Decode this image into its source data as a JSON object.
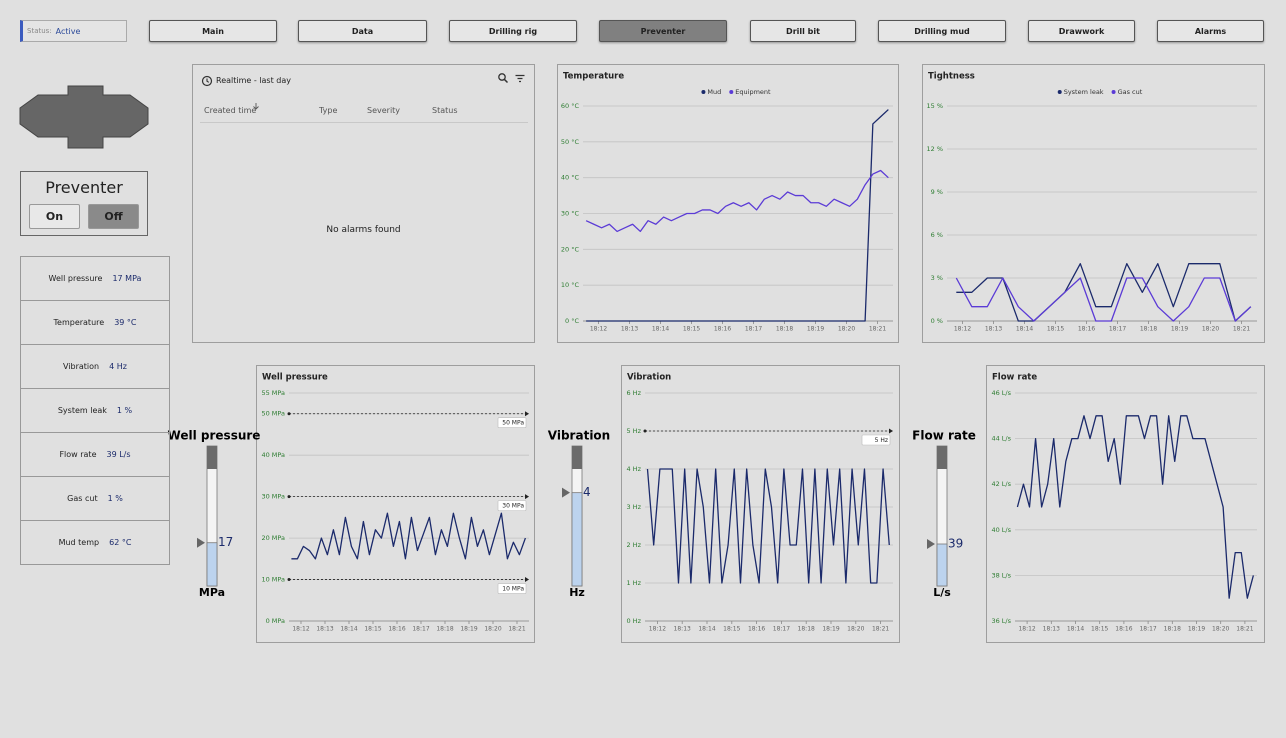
{
  "status": {
    "label": "Status:",
    "value": "Active"
  },
  "nav": [
    "Main",
    "Data",
    "Drilling rig",
    "Preventer",
    "Drill bit",
    "Drilling mud",
    "Drawwork",
    "Alarms"
  ],
  "preventer": {
    "title": "Preventer",
    "on": "On",
    "off": "Off"
  },
  "readings": [
    {
      "label": "Well pressure",
      "value": "17 MPa"
    },
    {
      "label": "Temperature",
      "value": "39 °C"
    },
    {
      "label": "Vibration",
      "value": "4 Hz"
    },
    {
      "label": "System leak",
      "value": "1 %"
    },
    {
      "label": "Flow rate",
      "value": "39 L/s"
    },
    {
      "label": "Gas cut",
      "value": "1 %"
    },
    {
      "label": "Mud temp",
      "value": "62 °C"
    }
  ],
  "alarms": {
    "title": "Realtime - last day",
    "columns": [
      "Created time",
      "Type",
      "Severity",
      "Status"
    ],
    "empty": "No alarms found"
  },
  "gauges": [
    {
      "title": "Well pressure",
      "value": 17,
      "unit": "MPa"
    },
    {
      "title": "Vibration",
      "value": 4,
      "unit": "Hz"
    },
    {
      "title": "Flow rate",
      "value": 39,
      "unit": "L/s"
    }
  ],
  "chart_data": [
    {
      "type": "line",
      "title": "Temperature",
      "legend": "top",
      "grid": true,
      "xlim": [
        1091.5,
        1101.5
      ],
      "xticks": [
        {
          "value": 1092,
          "label": "18:12"
        },
        {
          "value": 1093,
          "label": "18:13"
        },
        {
          "value": 1094,
          "label": "18:14"
        },
        {
          "value": 1095,
          "label": "18:15"
        },
        {
          "value": 1096,
          "label": "18:16"
        },
        {
          "value": 1097,
          "label": "18:17"
        },
        {
          "value": 1098,
          "label": "18:18"
        },
        {
          "value": 1099,
          "label": "18:19"
        },
        {
          "value": 1100,
          "label": "18:20"
        },
        {
          "value": 1101,
          "label": "18:21"
        }
      ],
      "ylim": [
        0,
        60
      ],
      "yticks": [
        {
          "value": 0,
          "label": "0 °C"
        },
        {
          "value": 10,
          "label": "10 °C"
        },
        {
          "value": 20,
          "label": "20 °C"
        },
        {
          "value": 30,
          "label": "30 °C"
        },
        {
          "value": 40,
          "label": "40 °C"
        },
        {
          "value": 50,
          "label": "50 °C"
        },
        {
          "value": 60,
          "label": "60 °C"
        }
      ],
      "x": [
        1091.6,
        1091.85,
        1092.1,
        1092.35,
        1092.6,
        1092.85,
        1093.1,
        1093.35,
        1093.6,
        1093.85,
        1094.1,
        1094.35,
        1094.6,
        1094.85,
        1095.1,
        1095.35,
        1095.6,
        1095.85,
        1096.1,
        1096.35,
        1096.6,
        1096.85,
        1097.1,
        1097.35,
        1097.6,
        1097.85,
        1098.1,
        1098.35,
        1098.6,
        1098.85,
        1099.1,
        1099.35,
        1099.6,
        1099.85,
        1100.1,
        1100.35,
        1100.6,
        1100.85,
        1101.1,
        1101.35
      ],
      "series": [
        {
          "name": "Mud",
          "color": "#1b2a6b",
          "values": [
            0,
            0,
            0,
            0,
            0,
            0,
            0,
            0,
            0,
            0,
            0,
            0,
            0,
            0,
            0,
            0,
            0,
            0,
            0,
            0,
            0,
            0,
            0,
            0,
            0,
            0,
            0,
            0,
            0,
            0,
            0,
            0,
            0,
            0,
            0,
            0,
            0,
            55,
            57,
            59
          ]
        },
        {
          "name": "Equipment",
          "color": "#5b3bd6",
          "values": [
            28,
            27,
            26,
            27,
            25,
            26,
            27,
            25,
            28,
            27,
            29,
            28,
            29,
            30,
            30,
            31,
            31,
            30,
            32,
            33,
            32,
            33,
            31,
            34,
            35,
            34,
            36,
            35,
            35,
            33,
            33,
            32,
            34,
            33,
            32,
            34,
            38,
            41,
            42,
            40
          ]
        }
      ]
    },
    {
      "type": "line",
      "title": "Tightness",
      "legend": "top",
      "grid": true,
      "xlim": [
        1091.5,
        1101.5
      ],
      "xticks": [
        {
          "value": 1092,
          "label": "18:12"
        },
        {
          "value": 1093,
          "label": "18:13"
        },
        {
          "value": 1094,
          "label": "18:14"
        },
        {
          "value": 1095,
          "label": "18:15"
        },
        {
          "value": 1096,
          "label": "18:16"
        },
        {
          "value": 1097,
          "label": "18:17"
        },
        {
          "value": 1098,
          "label": "18:18"
        },
        {
          "value": 1099,
          "label": "18:19"
        },
        {
          "value": 1100,
          "label": "18:20"
        },
        {
          "value": 1101,
          "label": "18:21"
        }
      ],
      "ylim": [
        0,
        15
      ],
      "yticks": [
        {
          "value": 0,
          "label": "0 %"
        },
        {
          "value": 3,
          "label": "3 %"
        },
        {
          "value": 6,
          "label": "6 %"
        },
        {
          "value": 9,
          "label": "9 %"
        },
        {
          "value": 12,
          "label": "12 %"
        },
        {
          "value": 15,
          "label": "15 %"
        }
      ],
      "x": [
        1091.8,
        1092.3,
        1092.8,
        1093.3,
        1093.8,
        1094.3,
        1094.8,
        1095.3,
        1095.8,
        1096.3,
        1096.8,
        1097.3,
        1097.8,
        1098.3,
        1098.8,
        1099.3,
        1099.8,
        1100.3,
        1100.8,
        1101.3
      ],
      "series": [
        {
          "name": "System leak",
          "color": "#1b2a6b",
          "values": [
            2,
            2,
            3,
            3,
            0,
            0,
            1,
            2,
            4,
            1,
            1,
            4,
            2,
            4,
            1,
            4,
            4,
            4,
            0,
            1
          ]
        },
        {
          "name": "Gas cut",
          "color": "#5b3bd6",
          "values": [
            3,
            1,
            1,
            3,
            1,
            0,
            1,
            2,
            3,
            0,
            0,
            3,
            3,
            1,
            0,
            1,
            3,
            3,
            0,
            1
          ]
        }
      ]
    },
    {
      "type": "line",
      "title": "Well pressure",
      "grid": true,
      "xlim": [
        1091.5,
        1101.5
      ],
      "xticks": [
        {
          "value": 1092,
          "label": "18:12"
        },
        {
          "value": 1093,
          "label": "18:13"
        },
        {
          "value": 1094,
          "label": "18:14"
        },
        {
          "value": 1095,
          "label": "18:15"
        },
        {
          "value": 1096,
          "label": "18:16"
        },
        {
          "value": 1097,
          "label": "18:17"
        },
        {
          "value": 1098,
          "label": "18:18"
        },
        {
          "value": 1099,
          "label": "18:19"
        },
        {
          "value": 1100,
          "label": "18:20"
        },
        {
          "value": 1101,
          "label": "18:21"
        }
      ],
      "ylim": [
        0,
        55
      ],
      "yticks": [
        {
          "value": 0,
          "label": "0 MPa"
        },
        {
          "value": 10,
          "label": "10 MPa"
        },
        {
          "value": 20,
          "label": "20 MPa"
        },
        {
          "value": 30,
          "label": "30 MPa"
        },
        {
          "value": 40,
          "label": "40 MPa"
        },
        {
          "value": 50,
          "label": "50 MPa"
        },
        {
          "value": 55,
          "label": "55 MPa"
        }
      ],
      "thresholds": [
        {
          "value": 50,
          "label": "50 MPa"
        },
        {
          "value": 30,
          "label": "30 MPa"
        },
        {
          "value": 10,
          "label": "10 MPa"
        }
      ],
      "x": [
        1091.6,
        1091.85,
        1092.1,
        1092.35,
        1092.6,
        1092.85,
        1093.1,
        1093.35,
        1093.6,
        1093.85,
        1094.1,
        1094.35,
        1094.6,
        1094.85,
        1095.1,
        1095.35,
        1095.6,
        1095.85,
        1096.1,
        1096.35,
        1096.6,
        1096.85,
        1097.1,
        1097.35,
        1097.6,
        1097.85,
        1098.1,
        1098.35,
        1098.6,
        1098.85,
        1099.1,
        1099.35,
        1099.6,
        1099.85,
        1100.1,
        1100.35,
        1100.6,
        1100.85,
        1101.1,
        1101.35
      ],
      "series": [
        {
          "name": "Well pressure",
          "color": "#1b2a6b",
          "values": [
            15,
            15,
            18,
            17,
            15,
            20,
            16,
            22,
            16,
            25,
            18,
            15,
            24,
            16,
            22,
            20,
            26,
            18,
            24,
            15,
            25,
            17,
            21,
            25,
            16,
            22,
            18,
            26,
            20,
            15,
            25,
            18,
            22,
            16,
            21,
            26,
            15,
            19,
            16,
            20
          ]
        }
      ]
    },
    {
      "type": "line",
      "title": "Vibration",
      "grid": true,
      "xlim": [
        1091.5,
        1101.5
      ],
      "xticks": [
        {
          "value": 1092,
          "label": "18:12"
        },
        {
          "value": 1093,
          "label": "18:13"
        },
        {
          "value": 1094,
          "label": "18:14"
        },
        {
          "value": 1095,
          "label": "18:15"
        },
        {
          "value": 1096,
          "label": "18:16"
        },
        {
          "value": 1097,
          "label": "18:17"
        },
        {
          "value": 1098,
          "label": "18:18"
        },
        {
          "value": 1099,
          "label": "18:19"
        },
        {
          "value": 1100,
          "label": "18:20"
        },
        {
          "value": 1101,
          "label": "18:21"
        }
      ],
      "ylim": [
        0,
        6
      ],
      "yticks": [
        {
          "value": 0,
          "label": "0 Hz"
        },
        {
          "value": 1,
          "label": "1 Hz"
        },
        {
          "value": 2,
          "label": "2 Hz"
        },
        {
          "value": 3,
          "label": "3 Hz"
        },
        {
          "value": 4,
          "label": "4 Hz"
        },
        {
          "value": 5,
          "label": "5 Hz"
        },
        {
          "value": 6,
          "label": "6 Hz"
        }
      ],
      "thresholds": [
        {
          "value": 5,
          "label": "5 Hz"
        }
      ],
      "x": [
        1091.6,
        1091.85,
        1092.1,
        1092.35,
        1092.6,
        1092.85,
        1093.1,
        1093.35,
        1093.6,
        1093.85,
        1094.1,
        1094.35,
        1094.6,
        1094.85,
        1095.1,
        1095.35,
        1095.6,
        1095.85,
        1096.1,
        1096.35,
        1096.6,
        1096.85,
        1097.1,
        1097.35,
        1097.6,
        1097.85,
        1098.1,
        1098.35,
        1098.6,
        1098.85,
        1099.1,
        1099.35,
        1099.6,
        1099.85,
        1100.1,
        1100.35,
        1100.6,
        1100.85,
        1101.1,
        1101.35
      ],
      "series": [
        {
          "name": "Vibration",
          "color": "#1b2a6b",
          "values": [
            4,
            2,
            4,
            4,
            4,
            1,
            4,
            1,
            4,
            3,
            1,
            4,
            1,
            2,
            4,
            1,
            4,
            2,
            1,
            4,
            3,
            1,
            4,
            2,
            2,
            4,
            1,
            4,
            1,
            4,
            2,
            4,
            1,
            4,
            2,
            4,
            1,
            1,
            4,
            2
          ]
        }
      ]
    },
    {
      "type": "line",
      "title": "Flow rate",
      "grid": true,
      "xlim": [
        1091.5,
        1101.5
      ],
      "xticks": [
        {
          "value": 1092,
          "label": "18:12"
        },
        {
          "value": 1093,
          "label": "18:13"
        },
        {
          "value": 1094,
          "label": "18:14"
        },
        {
          "value": 1095,
          "label": "18:15"
        },
        {
          "value": 1096,
          "label": "18:16"
        },
        {
          "value": 1097,
          "label": "18:17"
        },
        {
          "value": 1098,
          "label": "18:18"
        },
        {
          "value": 1099,
          "label": "18:19"
        },
        {
          "value": 1100,
          "label": "18:20"
        },
        {
          "value": 1101,
          "label": "18:21"
        }
      ],
      "ylim": [
        36,
        46
      ],
      "yticks": [
        {
          "value": 36,
          "label": "36 L/s"
        },
        {
          "value": 38,
          "label": "38 L/s"
        },
        {
          "value": 40,
          "label": "40 L/s"
        },
        {
          "value": 42,
          "label": "42 L/s"
        },
        {
          "value": 44,
          "label": "44 L/s"
        },
        {
          "value": 46,
          "label": "46 L/s"
        }
      ],
      "x": [
        1091.6,
        1091.85,
        1092.1,
        1092.35,
        1092.6,
        1092.85,
        1093.1,
        1093.35,
        1093.6,
        1093.85,
        1094.1,
        1094.35,
        1094.6,
        1094.85,
        1095.1,
        1095.35,
        1095.6,
        1095.85,
        1096.1,
        1096.35,
        1096.6,
        1096.85,
        1097.1,
        1097.35,
        1097.6,
        1097.85,
        1098.1,
        1098.35,
        1098.6,
        1098.85,
        1099.1,
        1099.35,
        1099.6,
        1099.85,
        1100.1,
        1100.35,
        1100.6,
        1100.85,
        1101.1,
        1101.35
      ],
      "series": [
        {
          "name": "Flow rate",
          "color": "#1b2a6b",
          "values": [
            41,
            42,
            41,
            44,
            41,
            42,
            44,
            41,
            43,
            44,
            44,
            45,
            44,
            45,
            45,
            43,
            44,
            42,
            45,
            45,
            45,
            44,
            45,
            45,
            42,
            45,
            43,
            45,
            45,
            44,
            44,
            44,
            43,
            42,
            41,
            37,
            39,
            39,
            37,
            38
          ]
        }
      ]
    }
  ]
}
